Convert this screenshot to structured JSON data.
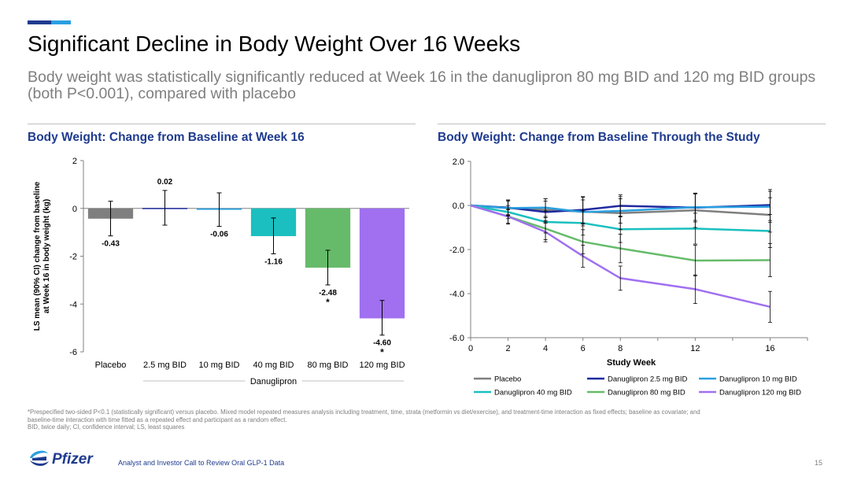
{
  "slide": {
    "title": "Significant Decline in Body Weight Over 16 Weeks",
    "subtitle": "Body weight was statistically significantly reduced at Week 16 in the danuglipron 80 mg BID and 120 mg BID groups (both P<0.001), compared with placebo",
    "accent_colors": [
      "#1f3b8f",
      "#2a9fe0"
    ],
    "title_color": "#1f3b8f",
    "footnote_lines": [
      "*Prespecified two-sided P<0.1 (statistically significant) versus placebo. Mixed model repeated measures analysis including treatment, time, strata (metformin vs diet/exercise), and treatment-time interaction as fixed effects; baseline as covariate; and",
      "baseline-time interaction with time fitted as a repeated effect and participant as a random effect.",
      "BID, twice daily; CI, confidence interval; LS, least squares"
    ],
    "footer_text": "Analyst and Investor Call to Review Oral GLP-1 Data",
    "page_number": "15",
    "logo_text": "Pfizer"
  },
  "chart_data": [
    {
      "type": "bar",
      "title": "Body Weight: Change from Baseline at Week 16",
      "ylabel_lines": [
        "LS mean (90% CI) change from baseline",
        "at Week 16 in body weight (kg)"
      ],
      "group_label": "Danuglipron",
      "categories": [
        "Placebo",
        "2.5 mg BID",
        "10 mg BID",
        "40 mg BID",
        "80 mg BID",
        "120 mg BID"
      ],
      "values": [
        -0.43,
        0.02,
        -0.06,
        -1.16,
        -2.48,
        -4.6
      ],
      "value_labels": [
        "-0.43",
        "0.02",
        "-0.06",
        "-1.16",
        "-2.48",
        "-4.60"
      ],
      "ci_lower": [
        -1.15,
        -0.7,
        -0.75,
        -1.9,
        -3.2,
        -5.3
      ],
      "ci_upper": [
        0.3,
        0.75,
        0.65,
        -0.4,
        -1.75,
        -3.85
      ],
      "significant": [
        false,
        false,
        false,
        false,
        true,
        true
      ],
      "significance_marker": "*",
      "colors": [
        "#7f7f7f",
        "#1f2aa0",
        "#2a9fe0",
        "#1bbfbf",
        "#66bb6a",
        "#a070f0"
      ],
      "ylim": [
        -6,
        2
      ],
      "yticks": [
        -6,
        -4,
        -2,
        0,
        2
      ],
      "ytick_labels": [
        "-6",
        "-4",
        "-2",
        "0",
        "2"
      ]
    },
    {
      "type": "line",
      "title": "Body Weight: Change from Baseline Through the Study",
      "xlabel": "Study Week",
      "x": [
        0,
        2,
        4,
        6,
        8,
        12,
        16
      ],
      "xlim": [
        0,
        18
      ],
      "xticks": [
        0,
        2,
        4,
        6,
        8,
        12,
        16
      ],
      "xtick_labels": [
        "0",
        "2",
        "4",
        "6",
        "8",
        "12",
        "16"
      ],
      "ylim": [
        -6,
        2
      ],
      "yticks": [
        2,
        0,
        -2,
        -4,
        -6
      ],
      "ytick_labels": [
        "2.0",
        "0.0",
        "-2.0",
        "-4.0",
        "-6.0"
      ],
      "series": [
        {
          "name": "Placebo",
          "color": "#7f7f7f",
          "values": [
            0,
            -0.12,
            -0.2,
            -0.28,
            -0.35,
            -0.22,
            -0.43
          ],
          "ci_halfwidth": [
            0,
            0.35,
            0.5,
            0.65,
            0.75,
            0.78,
            0.78
          ]
        },
        {
          "name": "Danuglipron 2.5 mg BID",
          "color": "#1f2aa0",
          "values": [
            0,
            -0.1,
            -0.3,
            -0.2,
            -0.02,
            -0.1,
            0.02
          ],
          "ci_halfwidth": [
            0,
            0.35,
            0.5,
            0.6,
            0.5,
            0.65,
            0.7
          ]
        },
        {
          "name": "Danuglipron 10 mg BID",
          "color": "#2a9fe0",
          "values": [
            0,
            -0.12,
            -0.1,
            -0.3,
            -0.25,
            -0.08,
            -0.06
          ],
          "ci_halfwidth": [
            0,
            0.3,
            0.4,
            0.55,
            0.55,
            0.6,
            0.7
          ]
        },
        {
          "name": "Danuglipron 40 mg BID",
          "color": "#1bbfbf",
          "values": [
            0,
            -0.3,
            -0.75,
            -0.8,
            -1.08,
            -1.05,
            -1.16
          ],
          "ci_halfwidth": [
            0,
            0.3,
            0.5,
            0.55,
            0.6,
            0.7,
            0.75
          ]
        },
        {
          "name": "Danuglipron 80 mg BID",
          "color": "#66bb6a",
          "values": [
            0,
            -0.5,
            -1.05,
            -1.65,
            -1.95,
            -2.5,
            -2.48
          ],
          "ci_halfwidth": [
            0,
            0.3,
            0.5,
            0.55,
            0.65,
            0.7,
            0.75
          ]
        },
        {
          "name": "Danuglipron 120 mg BID",
          "color": "#a070f0",
          "values": [
            0,
            -0.5,
            -1.2,
            -2.3,
            -3.3,
            -3.8,
            -4.6
          ],
          "ci_halfwidth": [
            0,
            0.35,
            0.45,
            0.5,
            0.55,
            0.65,
            0.7
          ]
        }
      ],
      "legend_position": "bottom"
    }
  ]
}
